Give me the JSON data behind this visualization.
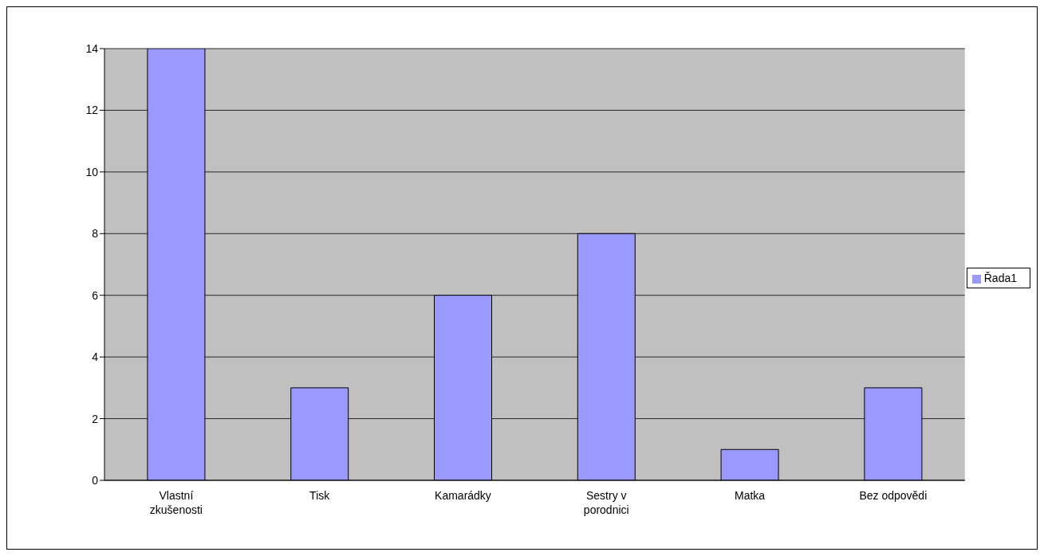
{
  "chart_data": {
    "type": "bar",
    "categories": [
      "Vlastní zkušenosti",
      "Tisk",
      "Kamarádky",
      "Sestry v porodnici",
      "Matka",
      "Bez odpovědi"
    ],
    "series": [
      {
        "name": "Řada1",
        "color": "#9999ff",
        "values": [
          14,
          3,
          6,
          8,
          1,
          3
        ]
      }
    ],
    "ylim": [
      0,
      14
    ],
    "yticks": [
      0,
      2,
      4,
      6,
      8,
      10,
      12,
      14
    ],
    "grid": "y",
    "legend": "right"
  }
}
